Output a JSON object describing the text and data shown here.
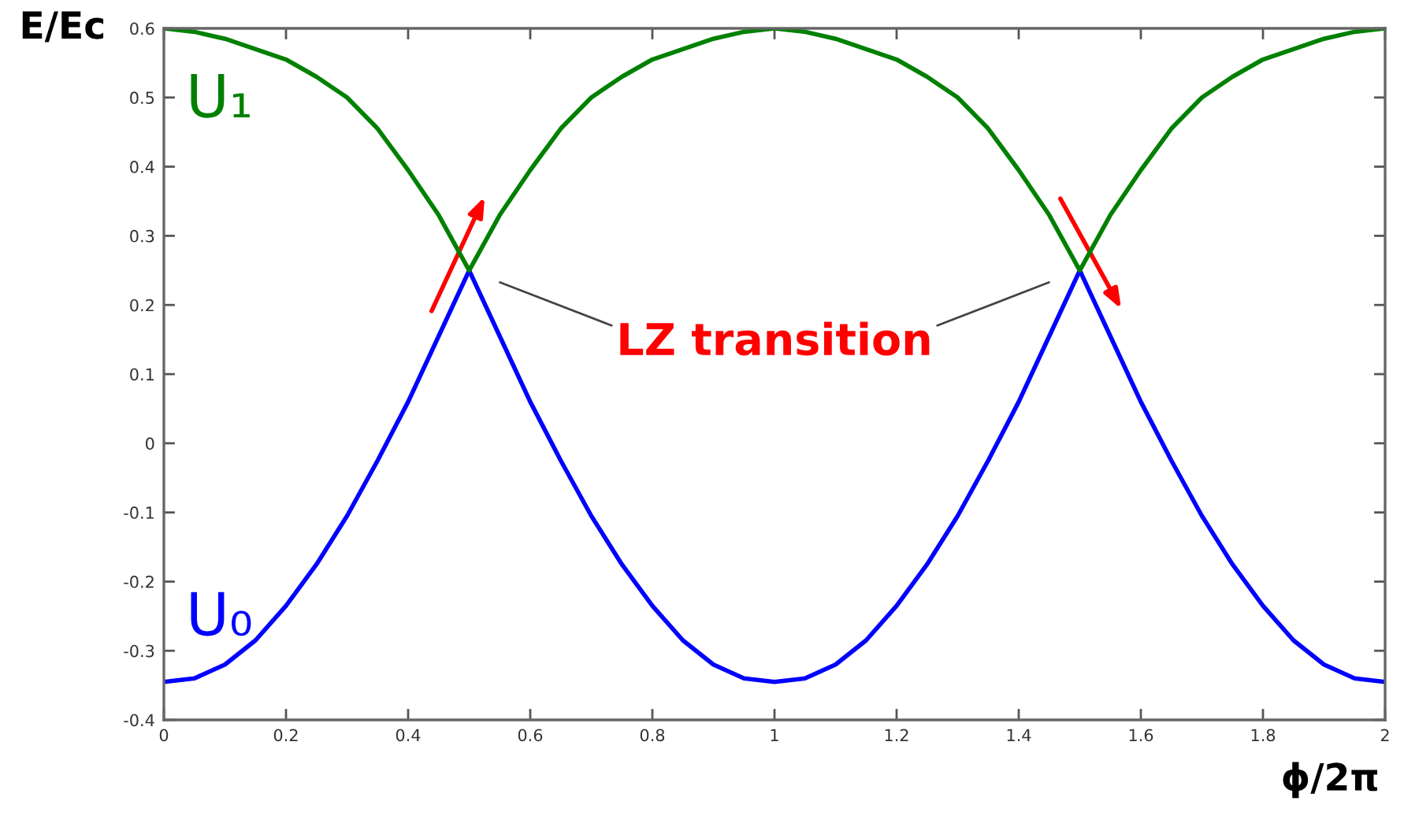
{
  "chart_data": {
    "type": "line",
    "xlabel": "ϕ/2π",
    "ylabel": "E/Ec",
    "x": [
      0,
      0.05,
      0.1,
      0.15,
      0.2,
      0.25,
      0.3,
      0.35,
      0.4,
      0.45,
      0.5,
      0.55,
      0.6,
      0.65,
      0.7,
      0.75,
      0.8,
      0.85,
      0.9,
      0.95,
      1,
      1.05,
      1.1,
      1.15,
      1.2,
      1.25,
      1.3,
      1.35,
      1.4,
      1.45,
      1.5,
      1.55,
      1.6,
      1.65,
      1.7,
      1.75,
      1.8,
      1.85,
      1.9,
      1.95,
      2
    ],
    "series": [
      {
        "name": "U₀",
        "color": "#0000ff",
        "values": [
          -0.345,
          -0.34,
          -0.32,
          -0.285,
          -0.235,
          -0.175,
          -0.105,
          -0.025,
          0.06,
          0.155,
          0.25,
          0.155,
          0.06,
          -0.025,
          -0.105,
          -0.175,
          -0.235,
          -0.285,
          -0.32,
          -0.34,
          -0.345,
          -0.34,
          -0.32,
          -0.285,
          -0.235,
          -0.175,
          -0.105,
          -0.025,
          0.06,
          0.155,
          0.25,
          0.155,
          0.06,
          -0.025,
          -0.105,
          -0.175,
          -0.235,
          -0.285,
          -0.32,
          -0.34,
          -0.345
        ]
      },
      {
        "name": "U₁",
        "color": "#008000",
        "values": [
          0.6,
          0.595,
          0.585,
          0.57,
          0.555,
          0.53,
          0.5,
          0.455,
          0.395,
          0.33,
          0.25,
          0.33,
          0.395,
          0.455,
          0.5,
          0.53,
          0.555,
          0.57,
          0.585,
          0.595,
          0.6,
          0.595,
          0.585,
          0.57,
          0.555,
          0.53,
          0.5,
          0.455,
          0.395,
          0.33,
          0.25,
          0.33,
          0.395,
          0.455,
          0.5,
          0.53,
          0.555,
          0.57,
          0.585,
          0.595,
          0.6
        ]
      }
    ],
    "xlim": [
      0,
      2
    ],
    "ylim": [
      -0.4,
      0.6
    ],
    "xticks": [
      0,
      0.2,
      0.4,
      0.6,
      0.8,
      1,
      1.2,
      1.4,
      1.6,
      1.8,
      2
    ],
    "yticks": [
      -0.4,
      -0.3,
      -0.2,
      -0.1,
      0,
      0.1,
      0.2,
      0.3,
      0.4,
      0.5,
      0.6
    ],
    "grid": false,
    "annotations": [
      "LZ transition"
    ]
  }
}
